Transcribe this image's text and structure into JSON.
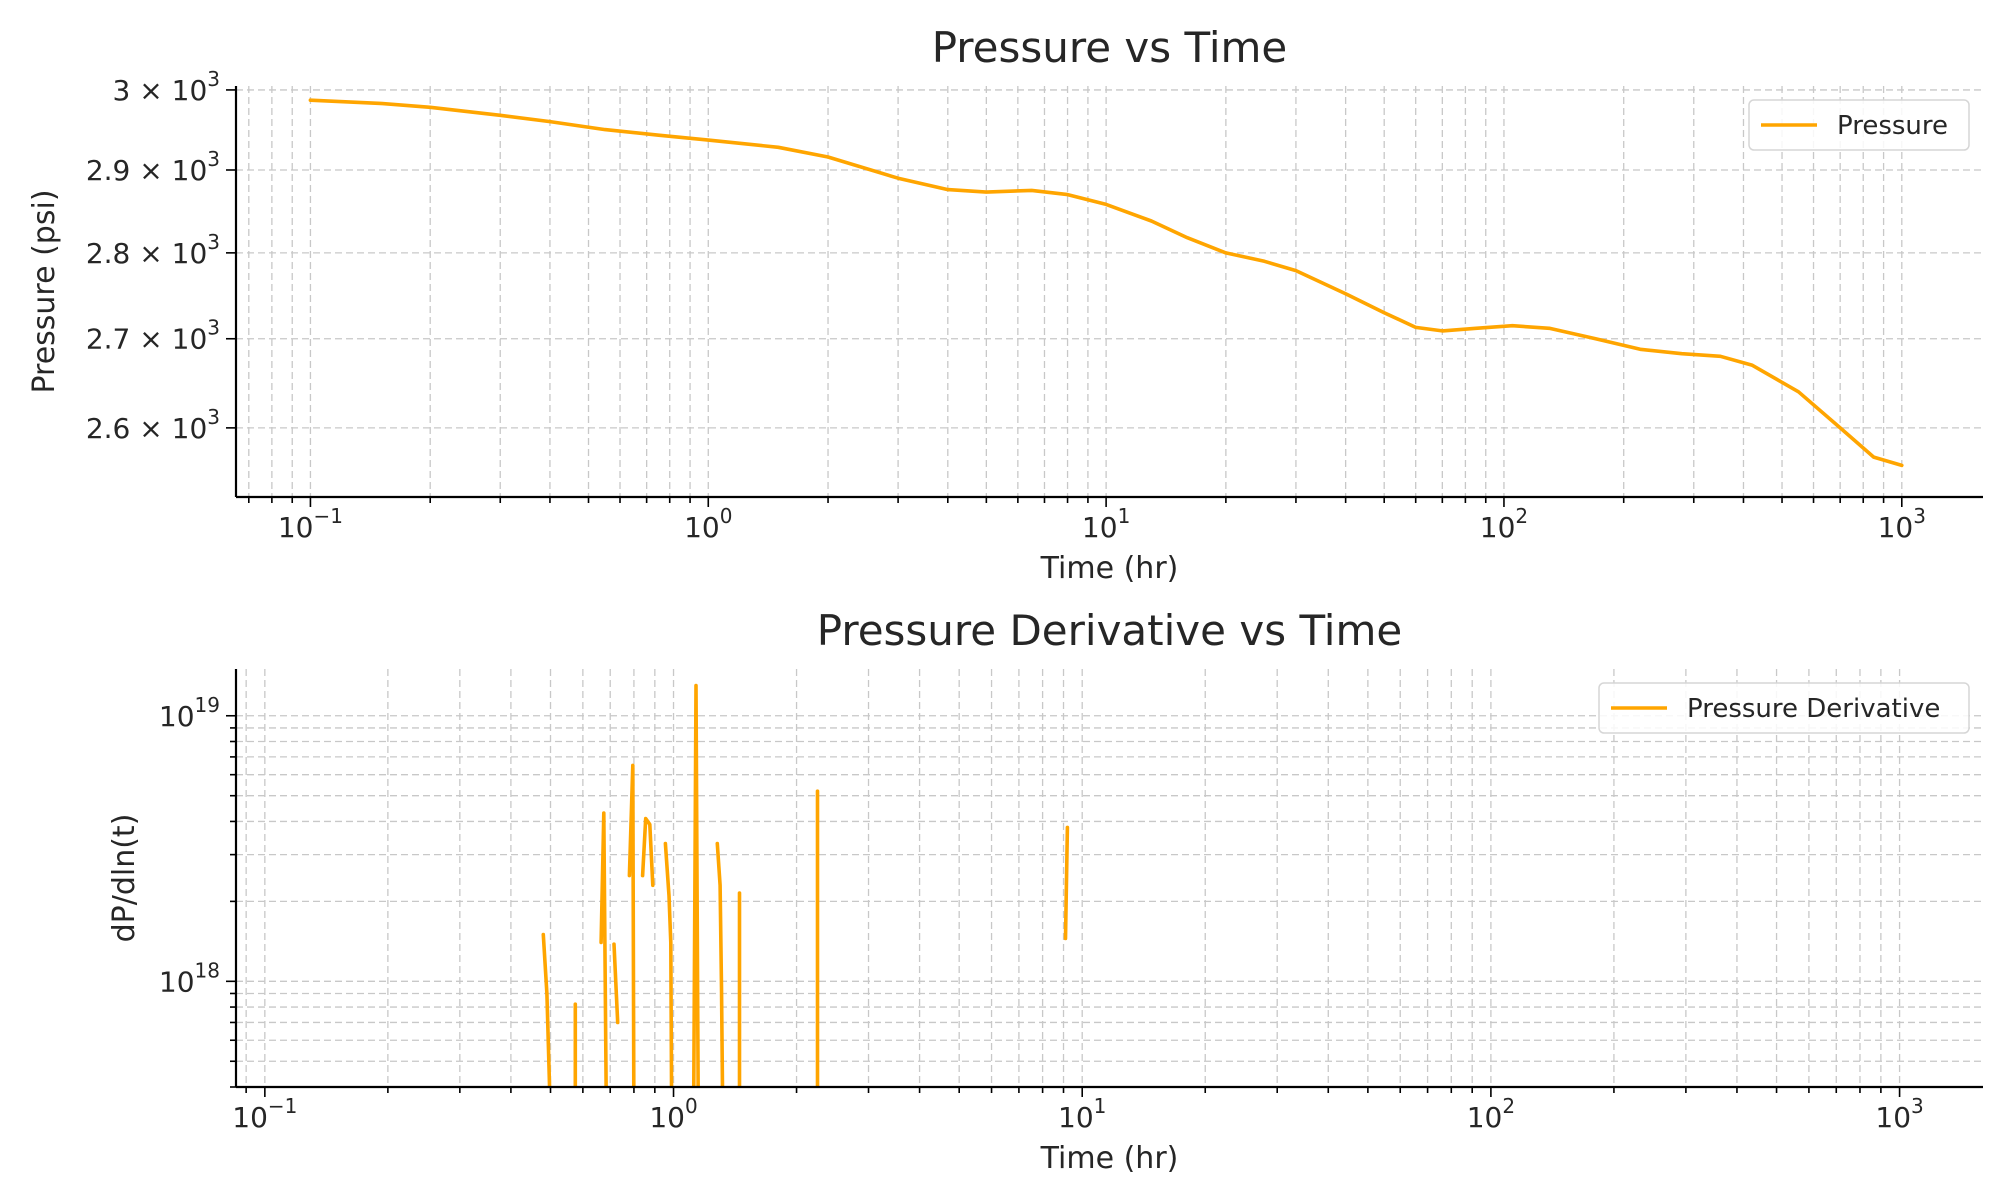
{
  "chart_data": [
    {
      "type": "line",
      "title": "Pressure vs Time",
      "xlabel": "Time (hr)",
      "ylabel": "Pressure (psi)",
      "xscale": "log",
      "yscale": "log",
      "xlim": [
        0.065,
        1600
      ],
      "ylim": [
        2525,
        3005
      ],
      "grid": true,
      "legend_position": "top-right",
      "x_tick_labels": [
        {
          "value": 0.1,
          "base": "10",
          "exp": "−1"
        },
        {
          "value": 1,
          "base": "10",
          "exp": "0"
        },
        {
          "value": 10,
          "base": "10",
          "exp": "1"
        },
        {
          "value": 100,
          "base": "10",
          "exp": "2"
        },
        {
          "value": 1000,
          "base": "10",
          "exp": "3"
        }
      ],
      "y_tick_labels": [
        {
          "value": 3000,
          "mant": "3 × ",
          "base": "10",
          "exp": "3"
        },
        {
          "value": 2900,
          "mant": "2.9 × ",
          "base": "10",
          "exp": "3"
        },
        {
          "value": 2800,
          "mant": "2.8 × ",
          "base": "10",
          "exp": "3"
        },
        {
          "value": 2700,
          "mant": "2.7 × ",
          "base": "10",
          "exp": "3"
        },
        {
          "value": 2600,
          "mant": "2.6 × ",
          "base": "10",
          "exp": "3"
        }
      ],
      "series": [
        {
          "name": "Pressure",
          "color": "#FFA500",
          "segments": [
            [
              [
                0.1,
                2987
              ],
              [
                0.15,
                2983
              ],
              [
                0.2,
                2978
              ],
              [
                0.3,
                2968
              ],
              [
                0.4,
                2960
              ],
              [
                0.55,
                2950
              ],
              [
                0.75,
                2943
              ],
              [
                1.0,
                2937
              ],
              [
                1.5,
                2928
              ],
              [
                2.0,
                2916
              ],
              [
                3.0,
                2890
              ],
              [
                4.0,
                2876
              ],
              [
                5.0,
                2873
              ],
              [
                6.5,
                2875
              ],
              [
                8.0,
                2870
              ],
              [
                10.0,
                2858
              ],
              [
                13.0,
                2838
              ],
              [
                16.0,
                2818
              ],
              [
                20.0,
                2800
              ],
              [
                25.0,
                2790
              ],
              [
                30.0,
                2779
              ],
              [
                40.0,
                2752
              ],
              [
                50.0,
                2730
              ],
              [
                60.0,
                2713
              ],
              [
                70.0,
                2709
              ],
              [
                85.0,
                2712
              ],
              [
                105.0,
                2715
              ],
              [
                130.0,
                2712
              ],
              [
                170.0,
                2700
              ],
              [
                220.0,
                2688
              ],
              [
                280.0,
                2683
              ],
              [
                350.0,
                2680
              ],
              [
                420.0,
                2670
              ],
              [
                550.0,
                2640
              ],
              [
                700.0,
                2600
              ],
              [
                850.0,
                2568
              ],
              [
                1000.0,
                2559
              ]
            ]
          ]
        }
      ]
    },
    {
      "type": "line",
      "title": "Pressure Derivative vs Time",
      "xlabel": "Time (hr)",
      "ylabel": "dP/dln(t)",
      "xscale": "log",
      "yscale": "log",
      "xlim": [
        0.085,
        1600
      ],
      "ylim": [
        4e+17,
        1.5e+19
      ],
      "grid": true,
      "legend_position": "top-right",
      "x_tick_labels": [
        {
          "value": 0.1,
          "base": "10",
          "exp": "−1"
        },
        {
          "value": 1,
          "base": "10",
          "exp": "0"
        },
        {
          "value": 10,
          "base": "10",
          "exp": "1"
        },
        {
          "value": 100,
          "base": "10",
          "exp": "2"
        },
        {
          "value": 1000,
          "base": "10",
          "exp": "3"
        }
      ],
      "y_tick_labels": [
        {
          "value": 1e+18,
          "base": "10",
          "exp": "18"
        },
        {
          "value": 1e+19,
          "base": "10",
          "exp": "19"
        }
      ],
      "series": [
        {
          "name": "Pressure Derivative",
          "color": "#FFA500",
          "segments": [
            [
              [
                0.48,
                1.5e+18
              ],
              [
                0.49,
                9e+17
              ],
              [
                0.5,
                3e+17
              ]
            ],
            [
              [
                0.575,
                8.2e+17
              ],
              [
                0.575,
                3e+17
              ]
            ],
            [
              [
                0.665,
                1.4e+18
              ],
              [
                0.675,
                4.3e+18
              ],
              [
                0.685,
                3e+17
              ]
            ],
            [
              [
                0.715,
                1.38e+18
              ],
              [
                0.73,
                7e+17
              ]
            ],
            [
              [
                0.78,
                2.5e+18
              ],
              [
                0.795,
                6.5e+18
              ],
              [
                0.8,
                3e+17
              ]
            ],
            [
              [
                0.84,
                2.5e+18
              ],
              [
                0.855,
                4.1e+18
              ],
              [
                0.875,
                3.9e+18
              ],
              [
                0.89,
                2.3e+18
              ]
            ],
            [
              [
                0.955,
                3.3e+18
              ],
              [
                0.975,
                2.1e+18
              ],
              [
                0.985,
                1.4e+18
              ],
              [
                0.99,
                3e+17
              ]
            ],
            [
              [
                1.12,
                3e+17
              ],
              [
                1.135,
                1.3e+19
              ],
              [
                1.15,
                3e+17
              ]
            ],
            [
              [
                1.28,
                3.3e+18
              ],
              [
                1.3,
                2.3e+18
              ],
              [
                1.31,
                9.5e+17
              ],
              [
                1.32,
                3e+17
              ]
            ],
            [
              [
                1.45,
                2.15e+18
              ],
              [
                1.45,
                3e+17
              ]
            ],
            [
              [
                2.25,
                5.2e+18
              ],
              [
                2.25,
                3e+17
              ]
            ],
            [
              [
                9.1,
                1.45e+18
              ],
              [
                9.2,
                3.8e+18
              ]
            ]
          ]
        }
      ]
    }
  ]
}
